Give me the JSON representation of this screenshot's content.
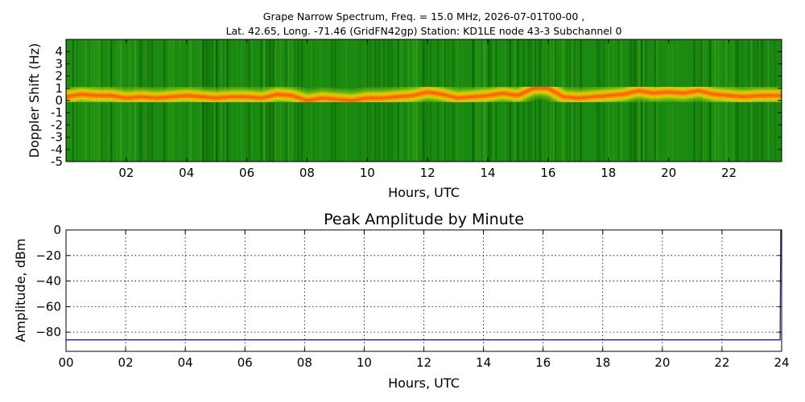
{
  "figure": {
    "title_line1": "Grape Narrow Spectrum, Freq. = 15.0 MHz, 2026-07-01T00-00 ,",
    "title_line2": "Lat.  42.65, Long. -71.46 (GridFN42gp) Station: KD1LE node 43-3 Subchannel 0"
  },
  "chart_data": [
    {
      "type": "heatmap",
      "title": "",
      "xlabel": "Hours, UTC",
      "ylabel": "Doppler Shift (Hz)",
      "xlim": [
        0,
        23.75
      ],
      "ylim": [
        -5,
        5
      ],
      "x_ticks": [
        2,
        4,
        6,
        8,
        10,
        12,
        14,
        16,
        18,
        20,
        22
      ],
      "x_tick_labels": [
        "02",
        "04",
        "06",
        "08",
        "10",
        "12",
        "14",
        "16",
        "18",
        "20",
        "22"
      ],
      "y_ticks": [
        4,
        3,
        2,
        1,
        0,
        -1,
        -2,
        -3,
        -4,
        -5
      ],
      "y_tick_labels": [
        "4",
        "3",
        "2",
        "1",
        "0",
        "-1",
        "-2",
        "-3",
        "-4",
        "-5"
      ],
      "colors": {
        "background": "#1a8a10",
        "mid": "#e6e000",
        "peak": "#ff3000"
      },
      "doppler_trace": {
        "hours": [
          0,
          0.5,
          1,
          1.5,
          2,
          2.5,
          3,
          3.5,
          4,
          4.5,
          5,
          5.5,
          6,
          6.5,
          7,
          7.5,
          8,
          8.5,
          9,
          9.5,
          10,
          10.5,
          11,
          11.5,
          12,
          12.5,
          13,
          13.5,
          14,
          14.5,
          15,
          15.5,
          16,
          16.5,
          17,
          17.5,
          18,
          18.5,
          19,
          19.5,
          20,
          20.5,
          21,
          21.5,
          22,
          22.5,
          23,
          23.75
        ],
        "shift_hz": [
          0.3,
          0.5,
          0.4,
          0.4,
          0.2,
          0.3,
          0.2,
          0.3,
          0.4,
          0.3,
          0.2,
          0.3,
          0.3,
          0.2,
          0.5,
          0.4,
          0.0,
          0.2,
          0.1,
          0.0,
          0.2,
          0.2,
          0.3,
          0.4,
          0.7,
          0.5,
          0.2,
          0.3,
          0.4,
          0.6,
          0.4,
          1.0,
          1.0,
          0.3,
          0.2,
          0.3,
          0.4,
          0.5,
          0.8,
          0.6,
          0.7,
          0.6,
          0.8,
          0.5,
          0.4,
          0.3,
          0.4,
          0.4
        ]
      }
    },
    {
      "type": "line",
      "title": "Peak Amplitude by Minute",
      "xlabel": "Hours, UTC",
      "ylabel": "Amplitude, dBm",
      "xlim": [
        0,
        24
      ],
      "ylim": [
        -95,
        0
      ],
      "grid": true,
      "x_ticks": [
        0,
        2,
        4,
        6,
        8,
        10,
        12,
        14,
        16,
        18,
        20,
        22,
        24
      ],
      "x_tick_labels": [
        "00",
        "02",
        "04",
        "06",
        "08",
        "10",
        "12",
        "14",
        "16",
        "18",
        "20",
        "22",
        "24"
      ],
      "y_ticks": [
        0,
        -20,
        -40,
        -60,
        -80
      ],
      "y_tick_labels": [
        "0",
        "−20",
        "−40",
        "−60",
        "−80"
      ],
      "colors": {
        "line": "#1f1f9e"
      },
      "series": [
        {
          "x": [
            0,
            2,
            4,
            6,
            8,
            10,
            12,
            14,
            16,
            18,
            20,
            22,
            23.95,
            23.97,
            24
          ],
          "values": [
            -86,
            -86,
            -86,
            -86,
            -86,
            -86,
            -86,
            -86,
            -86,
            -86,
            -86,
            -86,
            -86,
            0,
            0
          ]
        }
      ]
    }
  ]
}
